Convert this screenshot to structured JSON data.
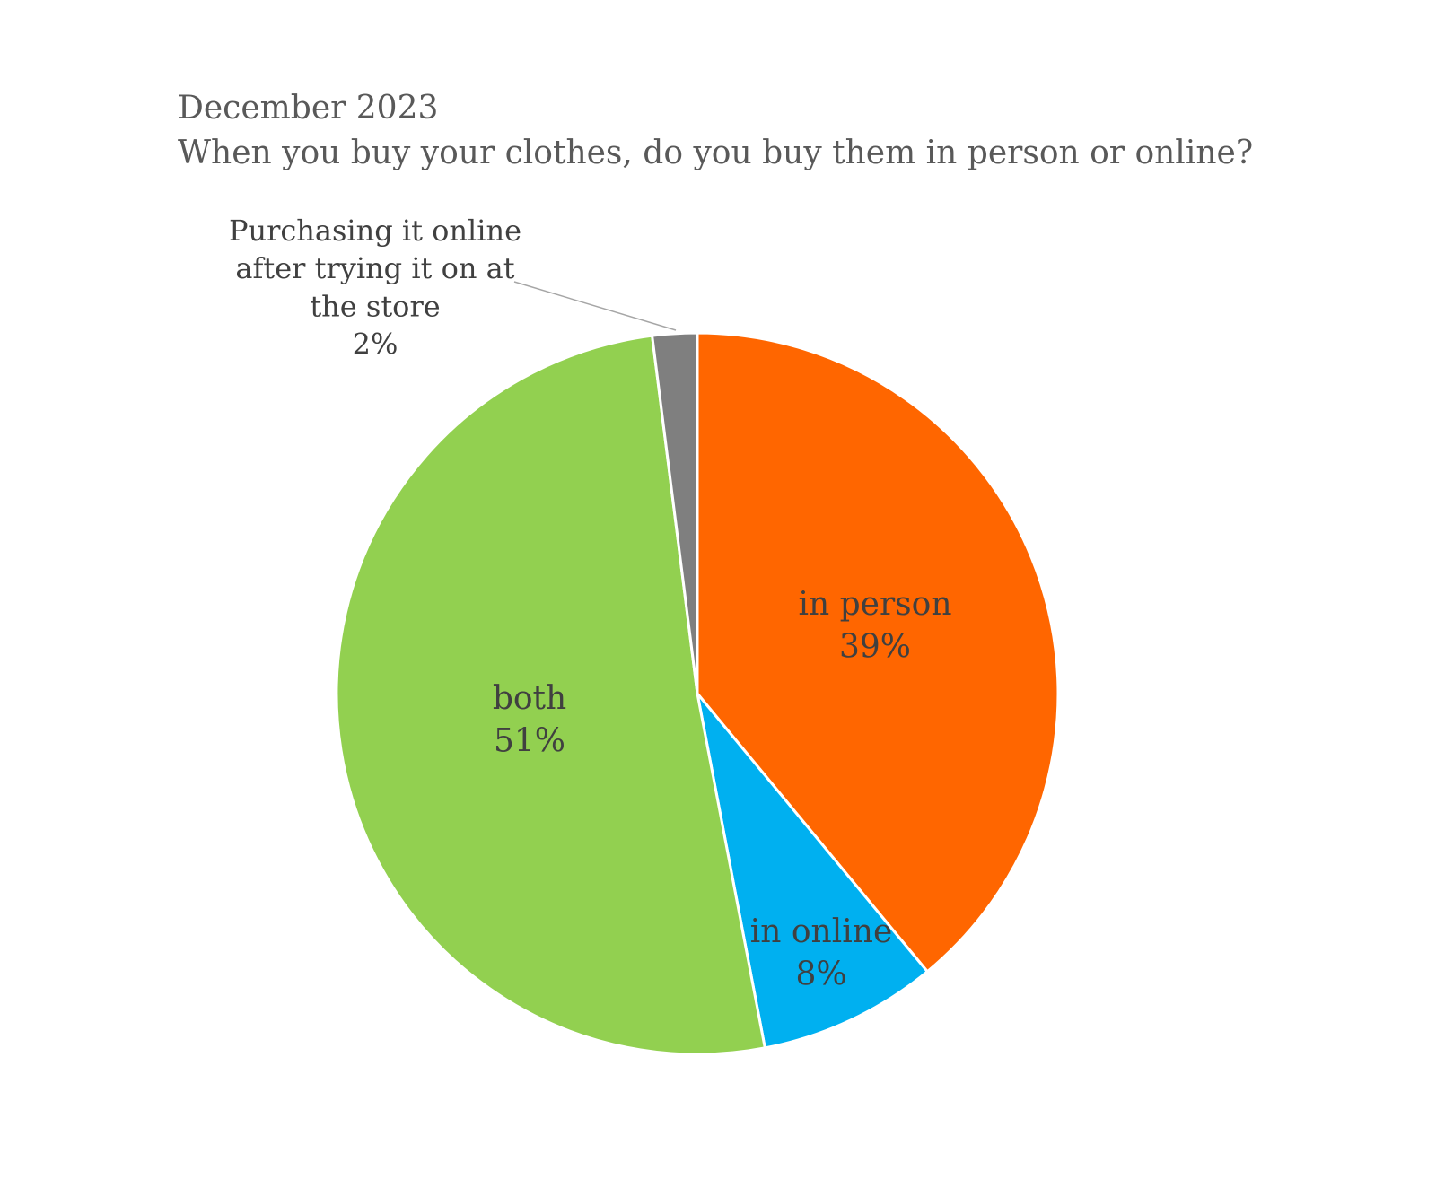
{
  "chart_data": {
    "type": "pie",
    "title": "December 2023",
    "subtitle": "When you buy your clothes, do you buy them in person or online?",
    "slices": [
      {
        "label": "in person",
        "value": 39,
        "value_label": "39%",
        "color": "#ff6600"
      },
      {
        "label": "in online",
        "value": 8,
        "value_label": "8%",
        "color": "#00b0f0"
      },
      {
        "label": "both",
        "value": 51,
        "value_label": "51%",
        "color": "#92d050"
      },
      {
        "label": "Purchasing it online after trying it on at the store",
        "value": 2,
        "value_label": "2%",
        "color": "#7f7f7f"
      }
    ],
    "start_angle": "12 o'clock",
    "direction": "clockwise",
    "legend": "none"
  }
}
